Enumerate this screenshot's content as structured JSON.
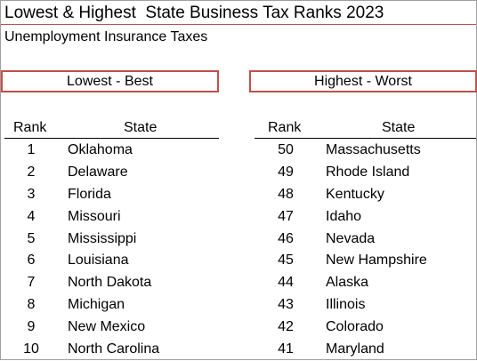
{
  "title": "Lowest & Highest  State Business Tax Ranks 2023",
  "subtitle": "Unemployment Insurance Taxes",
  "lowest": {
    "label": "Lowest - Best",
    "rank_header": "Rank",
    "state_header": "State",
    "rows": [
      {
        "rank": "1",
        "state": "Oklahoma"
      },
      {
        "rank": "2",
        "state": "Delaware"
      },
      {
        "rank": "3",
        "state": "Florida"
      },
      {
        "rank": "4",
        "state": "Missouri"
      },
      {
        "rank": "5",
        "state": "Mississippi"
      },
      {
        "rank": "6",
        "state": "Louisiana"
      },
      {
        "rank": "7",
        "state": "North Dakota"
      },
      {
        "rank": "8",
        "state": "Michigan"
      },
      {
        "rank": "9",
        "state": "New Mexico"
      },
      {
        "rank": "10",
        "state": "North Carolina"
      }
    ]
  },
  "highest": {
    "label": "Highest - Worst",
    "rank_header": "Rank",
    "state_header": "State",
    "rows": [
      {
        "rank": "50",
        "state": "Massachusetts"
      },
      {
        "rank": "49",
        "state": "Rhode Island"
      },
      {
        "rank": "48",
        "state": "Kentucky"
      },
      {
        "rank": "47",
        "state": "Idaho"
      },
      {
        "rank": "46",
        "state": "Nevada"
      },
      {
        "rank": "45",
        "state": "New Hampshire"
      },
      {
        "rank": "44",
        "state": "Alaska"
      },
      {
        "rank": "43",
        "state": "Illinois"
      },
      {
        "rank": "42",
        "state": "Colorado"
      },
      {
        "rank": "41",
        "state": "Maryland"
      }
    ]
  },
  "colors": {
    "accent_border": "#c0504d"
  }
}
